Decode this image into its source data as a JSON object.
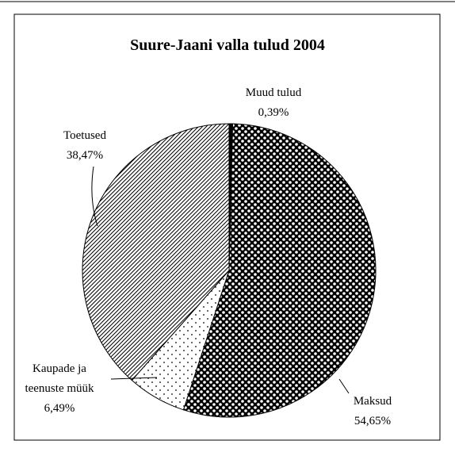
{
  "chart_data": {
    "type": "pie",
    "title": "Suure-Jaani valla tulud 2004",
    "categories": [
      "Muud tulud",
      "Maksud",
      "Kaupade ja teenuste müük",
      "Toetused"
    ],
    "values": [
      0.39,
      54.65,
      6.49,
      38.47
    ],
    "value_labels": [
      "0,39%",
      "54,65%",
      "6,49%",
      "38,47%"
    ]
  }
}
